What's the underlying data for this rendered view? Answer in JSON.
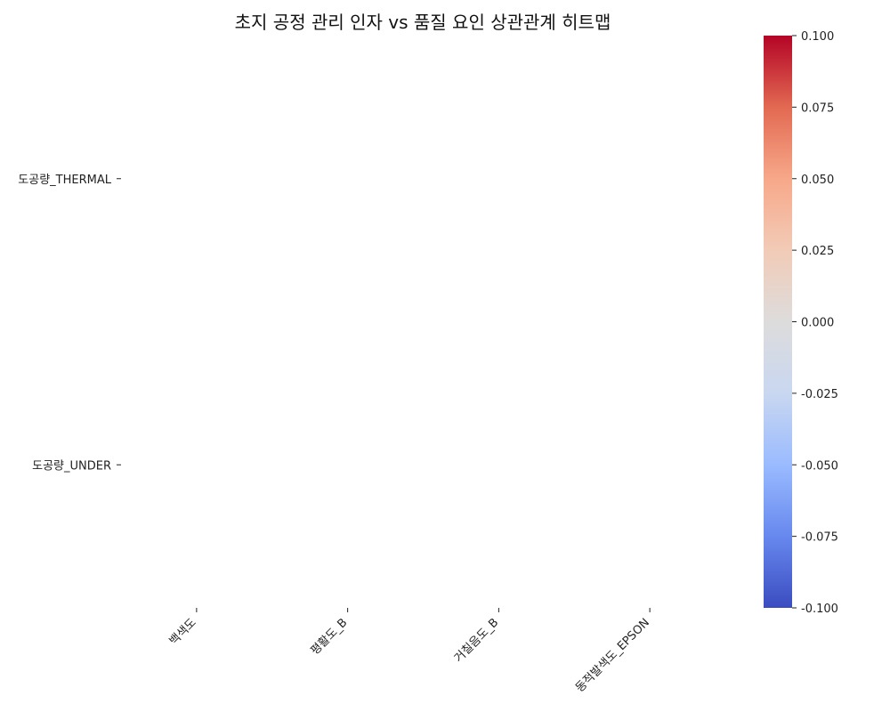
{
  "chart_data": {
    "type": "heatmap",
    "title": "초지 공정 관리 인자 vs 품질 요인 상관관계 히트맵",
    "x_categories": [
      "백색도",
      "평활도_B",
      "거칠음도_B",
      "동적발색도_EPSON"
    ],
    "y_categories": [
      "도공량_THERMAL",
      "도공량_UNDER"
    ],
    "values": [
      [
        null,
        null,
        null,
        null
      ],
      [
        null,
        null,
        null,
        null
      ]
    ],
    "colorbar": {
      "min": -0.1,
      "max": 0.1,
      "ticks": [
        "0.100",
        "0.075",
        "0.050",
        "0.025",
        "0.000",
        "-0.025",
        "-0.050",
        "-0.075",
        "-0.100"
      ],
      "colormap": "coolwarm",
      "colors": [
        "#3b4cc0",
        "#6788ee",
        "#9abbff",
        "#c9d7f0",
        "#dddcdc",
        "#f2cbb7",
        "#f7a889",
        "#e26952",
        "#b40426"
      ]
    }
  }
}
